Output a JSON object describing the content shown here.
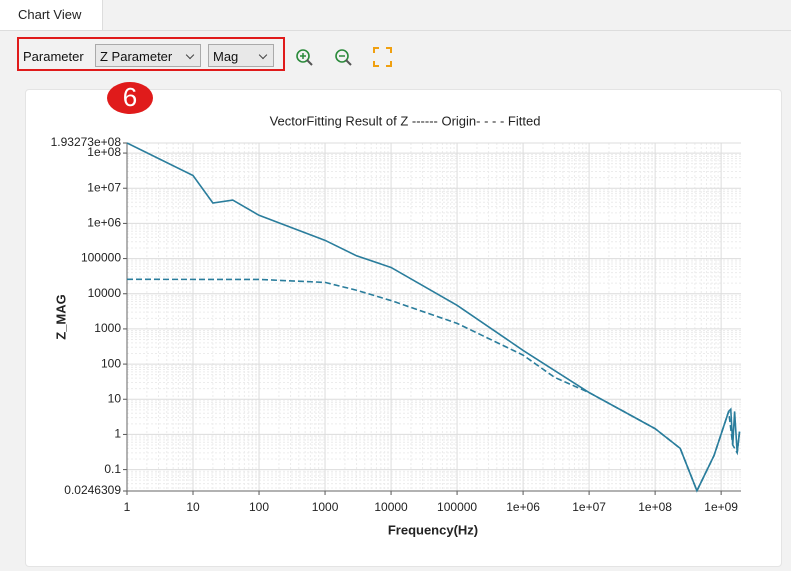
{
  "tab": "Chart View",
  "toolbar": {
    "label": "Parameter",
    "parameter": "Z Parameter",
    "mode": "Mag"
  },
  "badge": "6",
  "chart_data": {
    "type": "line",
    "title": "VectorFitting Result of Z ------ Origin- - - - Fitted",
    "x_label": "Frequency(Hz)",
    "y_label": "Z_MAG",
    "xscale": "log",
    "yscale": "log",
    "grid": true,
    "minor_grid": true,
    "xlim": [
      1,
      2000000000
    ],
    "ylim": [
      0.0246309,
      193273000
    ],
    "xticks": [
      1,
      10,
      100,
      1000,
      10000,
      100000,
      {
        "value": 1000000,
        "label": "1e+06"
      },
      {
        "value": 10000000,
        "label": "1e+07"
      },
      {
        "value": 100000000,
        "label": "1e+08"
      },
      {
        "value": 1000000000,
        "label": "1e+09"
      }
    ],
    "yticks": [
      {
        "value": 193273000,
        "label": "1.93273e+08"
      },
      {
        "value": 100000000,
        "label": "1e+08"
      },
      {
        "value": 10000000,
        "label": "1e+07"
      },
      {
        "value": 1000000,
        "label": "1e+06"
      },
      100000,
      10000,
      1000,
      100,
      10,
      1,
      0.1,
      0.0246309
    ],
    "series": [
      {
        "name": "Origin",
        "color": "#2a7d9c",
        "style": "solid",
        "x": [
          1,
          10,
          20,
          40,
          100,
          1000,
          3000,
          10000,
          100000,
          1000000,
          10000000,
          100000000,
          240000000,
          430000000,
          780000000,
          1300000000,
          1400000000,
          1500000000,
          1600000000,
          1750000000,
          1900000000
        ],
        "values": [
          193273000,
          23000000,
          3800000,
          4600000,
          1700000,
          330000,
          120000,
          56000,
          4700,
          245,
          15.5,
          1.46,
          0.4,
          0.025,
          0.25,
          4.5,
          5.2,
          0.5,
          4.5,
          0.3,
          1.2
        ]
      },
      {
        "name": "Fitted",
        "color": "#2a7d9c",
        "style": "dashed",
        "x": [
          1,
          100,
          1000,
          3000,
          10000,
          100000,
          1000000,
          3000000,
          10000000,
          100000000,
          240000000,
          430000000,
          780000000,
          1300000000,
          1500000000,
          1750000000,
          1900000000
        ],
        "values": [
          25700,
          25500,
          21000,
          12600,
          6400,
          1440,
          180,
          42,
          15.5,
          1.46,
          0.4,
          0.025,
          0.25,
          4.5,
          0.5,
          0.3,
          1.2
        ]
      }
    ]
  }
}
